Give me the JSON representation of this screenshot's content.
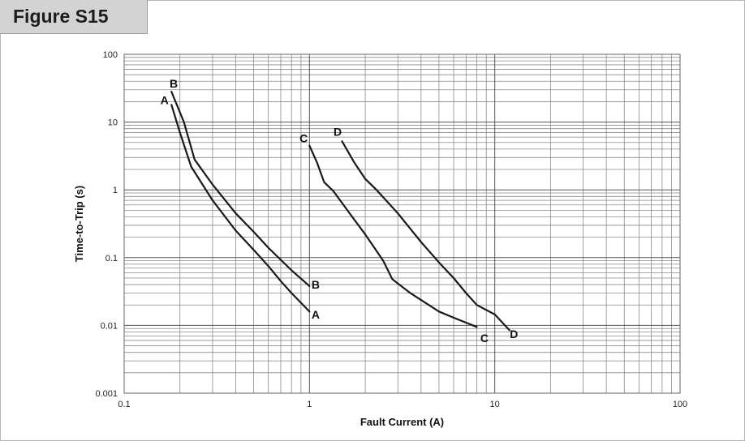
{
  "figure_label": "Figure S15",
  "chart_data": {
    "type": "line",
    "title": "",
    "xlabel": "Fault Current (A)",
    "ylabel": "Time-to-Trip (s)",
    "x_scale": "log",
    "y_scale": "log",
    "xlim": [
      0.1,
      100
    ],
    "ylim": [
      0.001,
      100
    ],
    "x_ticks": [
      {
        "value": 0.1,
        "label": "0.1"
      },
      {
        "value": 1,
        "label": "1"
      },
      {
        "value": 10,
        "label": "10"
      },
      {
        "value": 100,
        "label": "100"
      }
    ],
    "y_ticks": [
      {
        "value": 0.001,
        "label": "0.001"
      },
      {
        "value": 0.01,
        "label": "0.01"
      },
      {
        "value": 0.1,
        "label": "0.1"
      },
      {
        "value": 1,
        "label": "1"
      },
      {
        "value": 10,
        "label": "10"
      },
      {
        "value": 100,
        "label": "100"
      }
    ],
    "grid": true,
    "series": [
      {
        "name": "A",
        "color": "#1a1a1a",
        "x": [
          0.18,
          0.2,
          0.23,
          0.3,
          0.4,
          0.5,
          0.6,
          0.7,
          0.8,
          1.0
        ],
        "y": [
          18,
          7,
          2.2,
          0.7,
          0.25,
          0.13,
          0.075,
          0.045,
          0.03,
          0.016
        ]
      },
      {
        "name": "B",
        "color": "#1a1a1a",
        "x": [
          0.18,
          0.21,
          0.24,
          0.3,
          0.4,
          0.5,
          0.6,
          0.8,
          1.0
        ],
        "y": [
          28,
          10,
          2.8,
          1.2,
          0.45,
          0.24,
          0.14,
          0.065,
          0.038
        ]
      },
      {
        "name": "C",
        "color": "#1a1a1a",
        "x": [
          1.0,
          1.1,
          1.2,
          1.35,
          1.7,
          2.0,
          2.5,
          2.8,
          3.5,
          5.0,
          6.0,
          8.0
        ],
        "y": [
          4.5,
          2.5,
          1.3,
          0.95,
          0.4,
          0.22,
          0.09,
          0.048,
          0.03,
          0.016,
          0.013,
          0.0095
        ]
      },
      {
        "name": "D",
        "color": "#1a1a1a",
        "x": [
          1.5,
          1.75,
          2.0,
          2.3,
          3.0,
          4.0,
          5.0,
          6.0,
          7.0,
          8.0,
          10.0,
          12.0
        ],
        "y": [
          5.2,
          2.5,
          1.45,
          1.0,
          0.45,
          0.17,
          0.085,
          0.05,
          0.03,
          0.02,
          0.0145,
          0.0085
        ]
      }
    ],
    "annotations": [
      {
        "text": "B",
        "x": 0.185,
        "y": 37
      },
      {
        "text": "A",
        "x": 0.165,
        "y": 21
      },
      {
        "text": "B",
        "x": 1.08,
        "y": 0.04
      },
      {
        "text": "A",
        "x": 1.08,
        "y": 0.0145
      },
      {
        "text": "C",
        "x": 0.93,
        "y": 5.8
      },
      {
        "text": "D",
        "x": 1.42,
        "y": 7.2
      },
      {
        "text": "C",
        "x": 8.8,
        "y": 0.0065
      },
      {
        "text": "D",
        "x": 12.7,
        "y": 0.0075
      }
    ]
  }
}
